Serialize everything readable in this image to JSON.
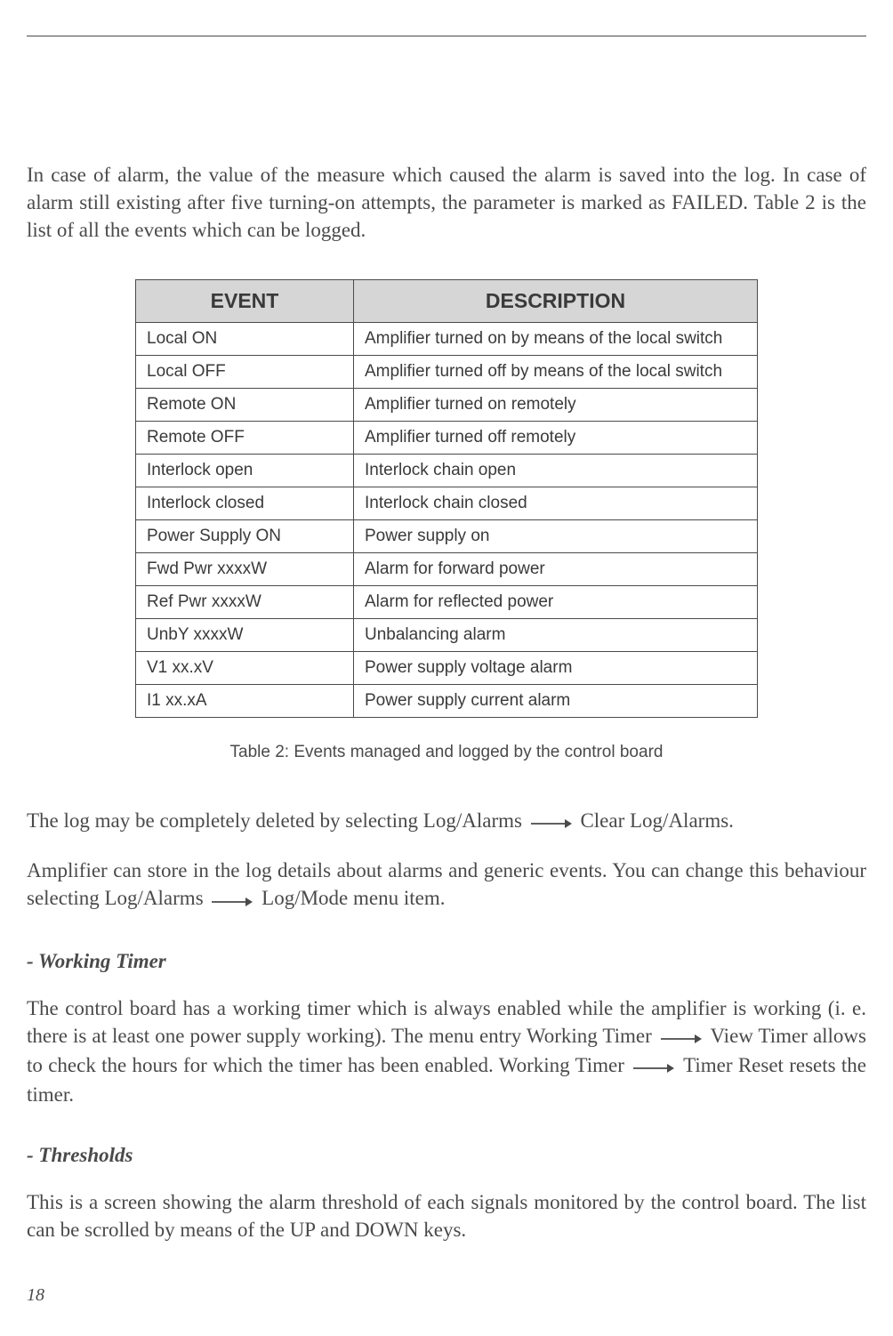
{
  "intro_paragraph": "In case of alarm, the value of the measure which caused the alarm is saved into the log. In case of alarm still existing after five turning-on attempts, the parameter is marked as FAILED. Table 2 is the list of all the events which can be logged.",
  "table": {
    "headers": {
      "event": "EVENT",
      "description": "DESCRIPTION"
    },
    "rows": [
      {
        "event": "Local ON",
        "description": "Amplifier turned on by means of the local switch"
      },
      {
        "event": "Local OFF",
        "description": "Amplifier turned off by means of the local switch"
      },
      {
        "event": "Remote ON",
        "description": "Amplifier turned on remotely"
      },
      {
        "event": "Remote OFF",
        "description": "Amplifier turned off remotely"
      },
      {
        "event": "Interlock open",
        "description": "Interlock chain open"
      },
      {
        "event": "Interlock closed",
        "description": "Interlock chain closed"
      },
      {
        "event": "Power Supply ON",
        "description": "Power supply on"
      },
      {
        "event": "Fwd Pwr xxxxW",
        "description": "Alarm for forward power"
      },
      {
        "event": "Ref Pwr xxxxW",
        "description": "Alarm for reflected power"
      },
      {
        "event": "UnbY xxxxW",
        "description": "Unbalancing alarm"
      },
      {
        "event": "V1 xx.xV",
        "description": "Power supply voltage alarm"
      },
      {
        "event": "I1 xx.xA",
        "description": "Power supply current alarm"
      }
    ]
  },
  "caption": "Table 2: Events managed and logged by the control board",
  "log_para": {
    "p1a": "The log may be completely deleted by selecting Log/Alarms",
    "p1b": "Clear Log/Alarms.",
    "p2a": "Amplifier can store in the log details about alarms and generic events. You can change this behaviour selecting Log/Alarms",
    "p2b": "Log/Mode menu item."
  },
  "working_timer": {
    "heading": "- Working Timer",
    "p1a": "The control board has a working timer which is always enabled while the amplifier is working (i. e. there is at least one power supply working). The menu entry Working Timer",
    "p1b": "View Timer allows to check the hours for which the timer has been enabled. Working Timer",
    "p1c": "Timer Reset resets the timer."
  },
  "thresholds": {
    "heading": "- Thresholds",
    "para": "This is a screen showing the alarm threshold of each signals monitored by the control board. The list can be scrolled by means of the UP and DOWN keys."
  },
  "page_number": "18",
  "styles": {
    "arrow_color": "#4a4a4a",
    "header_bg": "#d6d6d6",
    "text_color": "#4a4a4a"
  }
}
